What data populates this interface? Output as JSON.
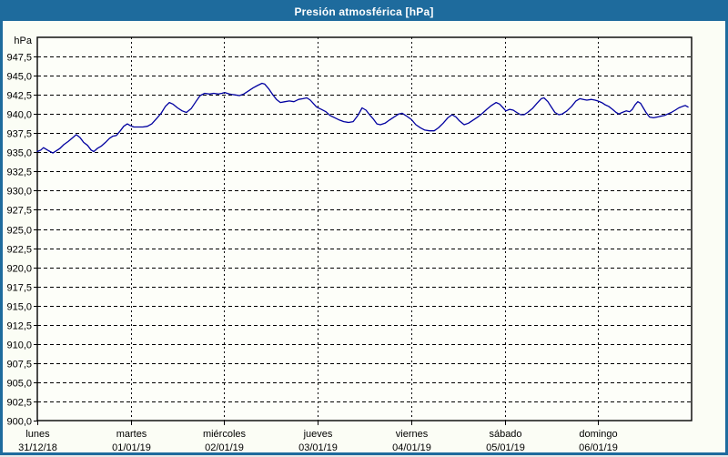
{
  "window": {
    "title": "Presión atmosférica [hPa]"
  },
  "colors": {
    "frame_blue": "#1E6B9D",
    "title_text": "#FFFFFF",
    "line_navy": "#0000A0",
    "grid_black": "#000000",
    "panel_background": "#FBFDF5",
    "plot_background": "#FDFEF9",
    "label_text": "#000000"
  },
  "chart_data": {
    "type": "line",
    "title": "Presión atmosférica [hPa]",
    "y_unit_label": "hPa",
    "ylim": [
      900,
      950
    ],
    "ytick_step": 2.5,
    "grid": "dashed",
    "legend_position": "none",
    "yticks": [
      {
        "value": 947.5,
        "label": "947,5"
      },
      {
        "value": 945.0,
        "label": "945,0"
      },
      {
        "value": 942.5,
        "label": "942,5"
      },
      {
        "value": 940.0,
        "label": "940,0"
      },
      {
        "value": 937.5,
        "label": "937,5"
      },
      {
        "value": 935.0,
        "label": "935,0"
      },
      {
        "value": 932.5,
        "label": "932,5"
      },
      {
        "value": 930.0,
        "label": "930,0"
      },
      {
        "value": 927.5,
        "label": "927,5"
      },
      {
        "value": 925.0,
        "label": "925,0"
      },
      {
        "value": 922.5,
        "label": "922,5"
      },
      {
        "value": 920.0,
        "label": "920,0"
      },
      {
        "value": 917.5,
        "label": "917,5"
      },
      {
        "value": 915.0,
        "label": "915,0"
      },
      {
        "value": 912.5,
        "label": "912,5"
      },
      {
        "value": 910.0,
        "label": "910,0"
      },
      {
        "value": 907.5,
        "label": "907,5"
      },
      {
        "value": 905.0,
        "label": "905,0"
      },
      {
        "value": 902.5,
        "label": "902,5"
      },
      {
        "value": 900.0,
        "label": "900,0"
      }
    ],
    "x_days": [
      {
        "name": "lunes",
        "date": "31/12/18"
      },
      {
        "name": "martes",
        "date": "01/01/19"
      },
      {
        "name": "miércoles",
        "date": "02/01/19"
      },
      {
        "name": "jueves",
        "date": "03/01/19"
      },
      {
        "name": "viernes",
        "date": "04/01/19"
      },
      {
        "name": "sábado",
        "date": "05/01/19"
      },
      {
        "name": "domingo",
        "date": "06/01/19"
      }
    ],
    "x_total_hours": 168,
    "series": [
      {
        "name": "presión atmosférica",
        "color": "#0000A0",
        "points_hours_hpa": [
          [
            0,
            935.1
          ],
          [
            0.9,
            935.3
          ],
          [
            1.6,
            935.6
          ],
          [
            2.6,
            935.3
          ],
          [
            3.3,
            935.1
          ],
          [
            4,
            934.9
          ],
          [
            4.9,
            935.2
          ],
          [
            5.8,
            935.5
          ],
          [
            6.8,
            936
          ],
          [
            7.9,
            936.4
          ],
          [
            9.1,
            936.9
          ],
          [
            10,
            937.3
          ],
          [
            11,
            936.9
          ],
          [
            11.9,
            936.3
          ],
          [
            12.9,
            935.9
          ],
          [
            13.8,
            935.3
          ],
          [
            14.5,
            935.1
          ],
          [
            15.4,
            935.5
          ],
          [
            16.4,
            935.8
          ],
          [
            17.5,
            936.3
          ],
          [
            18.5,
            936.8
          ],
          [
            19.4,
            937.1
          ],
          [
            20.3,
            937.2
          ],
          [
            21.3,
            937.8
          ],
          [
            22.2,
            938.4
          ],
          [
            23.1,
            938.7
          ],
          [
            23.8,
            938.5
          ],
          [
            24.8,
            938.3
          ],
          [
            25.9,
            938.3
          ],
          [
            27.1,
            938.3
          ],
          [
            28.3,
            938.4
          ],
          [
            29.4,
            938.7
          ],
          [
            30.6,
            939.4
          ],
          [
            31.8,
            940.1
          ],
          [
            32.9,
            941
          ],
          [
            33.9,
            941.5
          ],
          [
            34.8,
            941.3
          ],
          [
            36,
            940.8
          ],
          [
            37.2,
            940.4
          ],
          [
            38.3,
            940.2
          ],
          [
            39.5,
            940.7
          ],
          [
            40.7,
            941.6
          ],
          [
            41.8,
            942.4
          ],
          [
            43,
            942.7
          ],
          [
            44.2,
            942.6
          ],
          [
            45.3,
            942.7
          ],
          [
            46.5,
            942.6
          ],
          [
            47.4,
            942.7
          ],
          [
            48.1,
            942.8
          ],
          [
            49.3,
            942.6
          ],
          [
            50.7,
            942.5
          ],
          [
            51.9,
            942.4
          ],
          [
            53,
            942.6
          ],
          [
            54.2,
            943
          ],
          [
            55.4,
            943.4
          ],
          [
            56.5,
            943.7
          ],
          [
            57.7,
            944
          ],
          [
            58.4,
            943.9
          ],
          [
            59.4,
            943.3
          ],
          [
            60.5,
            942.5
          ],
          [
            61.4,
            941.9
          ],
          [
            62.4,
            941.5
          ],
          [
            63.6,
            941.6
          ],
          [
            64.7,
            941.7
          ],
          [
            65.9,
            941.6
          ],
          [
            67.1,
            941.9
          ],
          [
            68.2,
            942
          ],
          [
            69.2,
            942.1
          ],
          [
            70.1,
            941.8
          ],
          [
            71,
            941.3
          ],
          [
            71.7,
            940.9
          ],
          [
            72.9,
            940.6
          ],
          [
            74.1,
            940.3
          ],
          [
            75.2,
            939.8
          ],
          [
            76.4,
            939.5
          ],
          [
            77.6,
            939.2
          ],
          [
            78.7,
            939
          ],
          [
            79.9,
            938.9
          ],
          [
            81.1,
            939
          ],
          [
            82.3,
            939.8
          ],
          [
            83.4,
            940.8
          ],
          [
            84.4,
            940.5
          ],
          [
            85.3,
            939.9
          ],
          [
            86.2,
            939.4
          ],
          [
            87.2,
            938.7
          ],
          [
            88.1,
            938.6
          ],
          [
            89.3,
            938.8
          ],
          [
            90.4,
            939.2
          ],
          [
            91.6,
            939.6
          ],
          [
            92.8,
            940
          ],
          [
            93.7,
            940.1
          ],
          [
            94.6,
            939.8
          ],
          [
            96,
            939.3
          ],
          [
            97.2,
            938.6
          ],
          [
            98.4,
            938.2
          ],
          [
            99.5,
            937.9
          ],
          [
            100.7,
            937.8
          ],
          [
            101.9,
            937.8
          ],
          [
            103,
            938.2
          ],
          [
            104.2,
            938.8
          ],
          [
            105.4,
            939.5
          ],
          [
            106.5,
            939.9
          ],
          [
            107.5,
            939.6
          ],
          [
            108.4,
            939.1
          ],
          [
            109.6,
            938.6
          ],
          [
            110.7,
            938.8
          ],
          [
            111.9,
            939.2
          ],
          [
            113.1,
            939.6
          ],
          [
            114.3,
            940.1
          ],
          [
            115.4,
            940.6
          ],
          [
            116.6,
            941.1
          ],
          [
            117.8,
            941.5
          ],
          [
            118.7,
            941.3
          ],
          [
            119.6,
            940.8
          ],
          [
            120.3,
            940.4
          ],
          [
            121.3,
            940.6
          ],
          [
            122.2,
            940.5
          ],
          [
            123.1,
            940.2
          ],
          [
            124.1,
            939.9
          ],
          [
            125,
            939.9
          ],
          [
            125.9,
            940.2
          ],
          [
            127.1,
            940.7
          ],
          [
            128.3,
            941.4
          ],
          [
            129.4,
            942
          ],
          [
            130.1,
            942.1
          ],
          [
            131.1,
            941.6
          ],
          [
            132,
            940.9
          ],
          [
            132.9,
            940.2
          ],
          [
            133.9,
            939.9
          ],
          [
            134.8,
            940
          ],
          [
            136,
            940.4
          ],
          [
            137.2,
            941
          ],
          [
            138.3,
            941.7
          ],
          [
            139.3,
            942
          ],
          [
            140.2,
            941.9
          ],
          [
            141.1,
            941.8
          ],
          [
            142.3,
            941.9
          ],
          [
            143.2,
            941.8
          ],
          [
            143.9,
            941.7
          ],
          [
            144.9,
            941.5
          ],
          [
            145.8,
            941.2
          ],
          [
            146.7,
            941
          ],
          [
            147.7,
            940.6
          ],
          [
            148.6,
            940.2
          ],
          [
            149.3,
            940
          ],
          [
            150.2,
            940.2
          ],
          [
            151.2,
            940.4
          ],
          [
            152.1,
            940.3
          ],
          [
            152.8,
            940.6
          ],
          [
            153.5,
            941.2
          ],
          [
            154.2,
            941.6
          ],
          [
            154.9,
            941.4
          ],
          [
            155.6,
            940.8
          ],
          [
            156.3,
            940.2
          ],
          [
            157.2,
            939.6
          ],
          [
            158.2,
            939.5
          ],
          [
            159.1,
            939.6
          ],
          [
            160,
            939.7
          ],
          [
            161,
            939.8
          ],
          [
            161.9,
            940
          ],
          [
            162.8,
            940.2
          ],
          [
            163.8,
            940.5
          ],
          [
            164.7,
            940.8
          ],
          [
            165.7,
            941
          ],
          [
            166.4,
            941.1
          ],
          [
            167.1,
            940.9
          ]
        ]
      }
    ]
  }
}
